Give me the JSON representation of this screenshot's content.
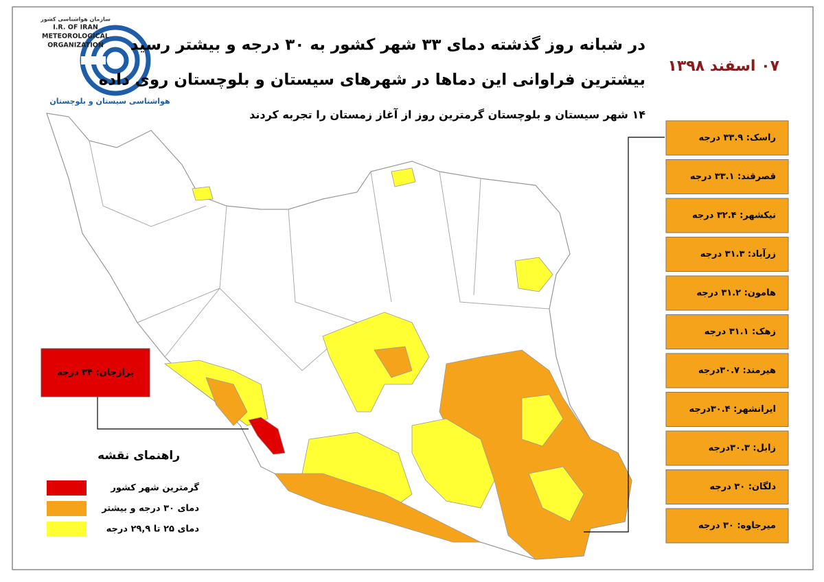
{
  "logo": {
    "org_fa": "سازمان هواشناسی کشور",
    "line1": "I.R. OF IRAN",
    "line2": "METEOROLOGICAL",
    "line3": "ORGANIZATION",
    "office": "هواشناسی سیستان و بلوچستان"
  },
  "header": {
    "lines": [
      "در شبانه روز گذشته دمای ۳۳ شهر کشور به ۳۰ درجه و  بیشتر رسید",
      "بیشترین فراوانی این دماها در شهرهای سیستان و بلوچستان روی داده",
      "۱۴ شهر سیستان و بلوچستان گرمترین روز از آغاز زمستان را تجربه کردند"
    ]
  },
  "date": "۰۷ اسفند ۱۳۹۸",
  "hottest": "برازجان: ۳۴ درجه",
  "cities": [
    "راسک: ۳۳.۹ درجه",
    "قصرقند: ۳۳.۱ درجه",
    "نیکشهر: ۳۲.۴ درجه",
    "زرآباد: ۳۱.۳ درجه",
    "هامون: ۳۱.۲ درجه",
    "زهک: ۳۱.۱ درجه",
    "هیرمند: ۳۰.۷درجه",
    "ایرانشهر: ۳۰.۴درجه",
    "زابل: ۳۰.۳درجه",
    "دلگان: ۳۰ درجه",
    "میرجاوه: ۳۰ درجه"
  ],
  "legend": {
    "title": "راهنمای نقشه",
    "items": [
      {
        "label": "گرمترین شهر کشور",
        "color": "#e00000"
      },
      {
        "label": "دمای ۳۰ درجه و بیشتر",
        "color": "#f5a31a"
      },
      {
        "label": "دمای ۲۵ تا ۲۹,۹ درجه",
        "color": "#ffff33"
      }
    ]
  }
}
